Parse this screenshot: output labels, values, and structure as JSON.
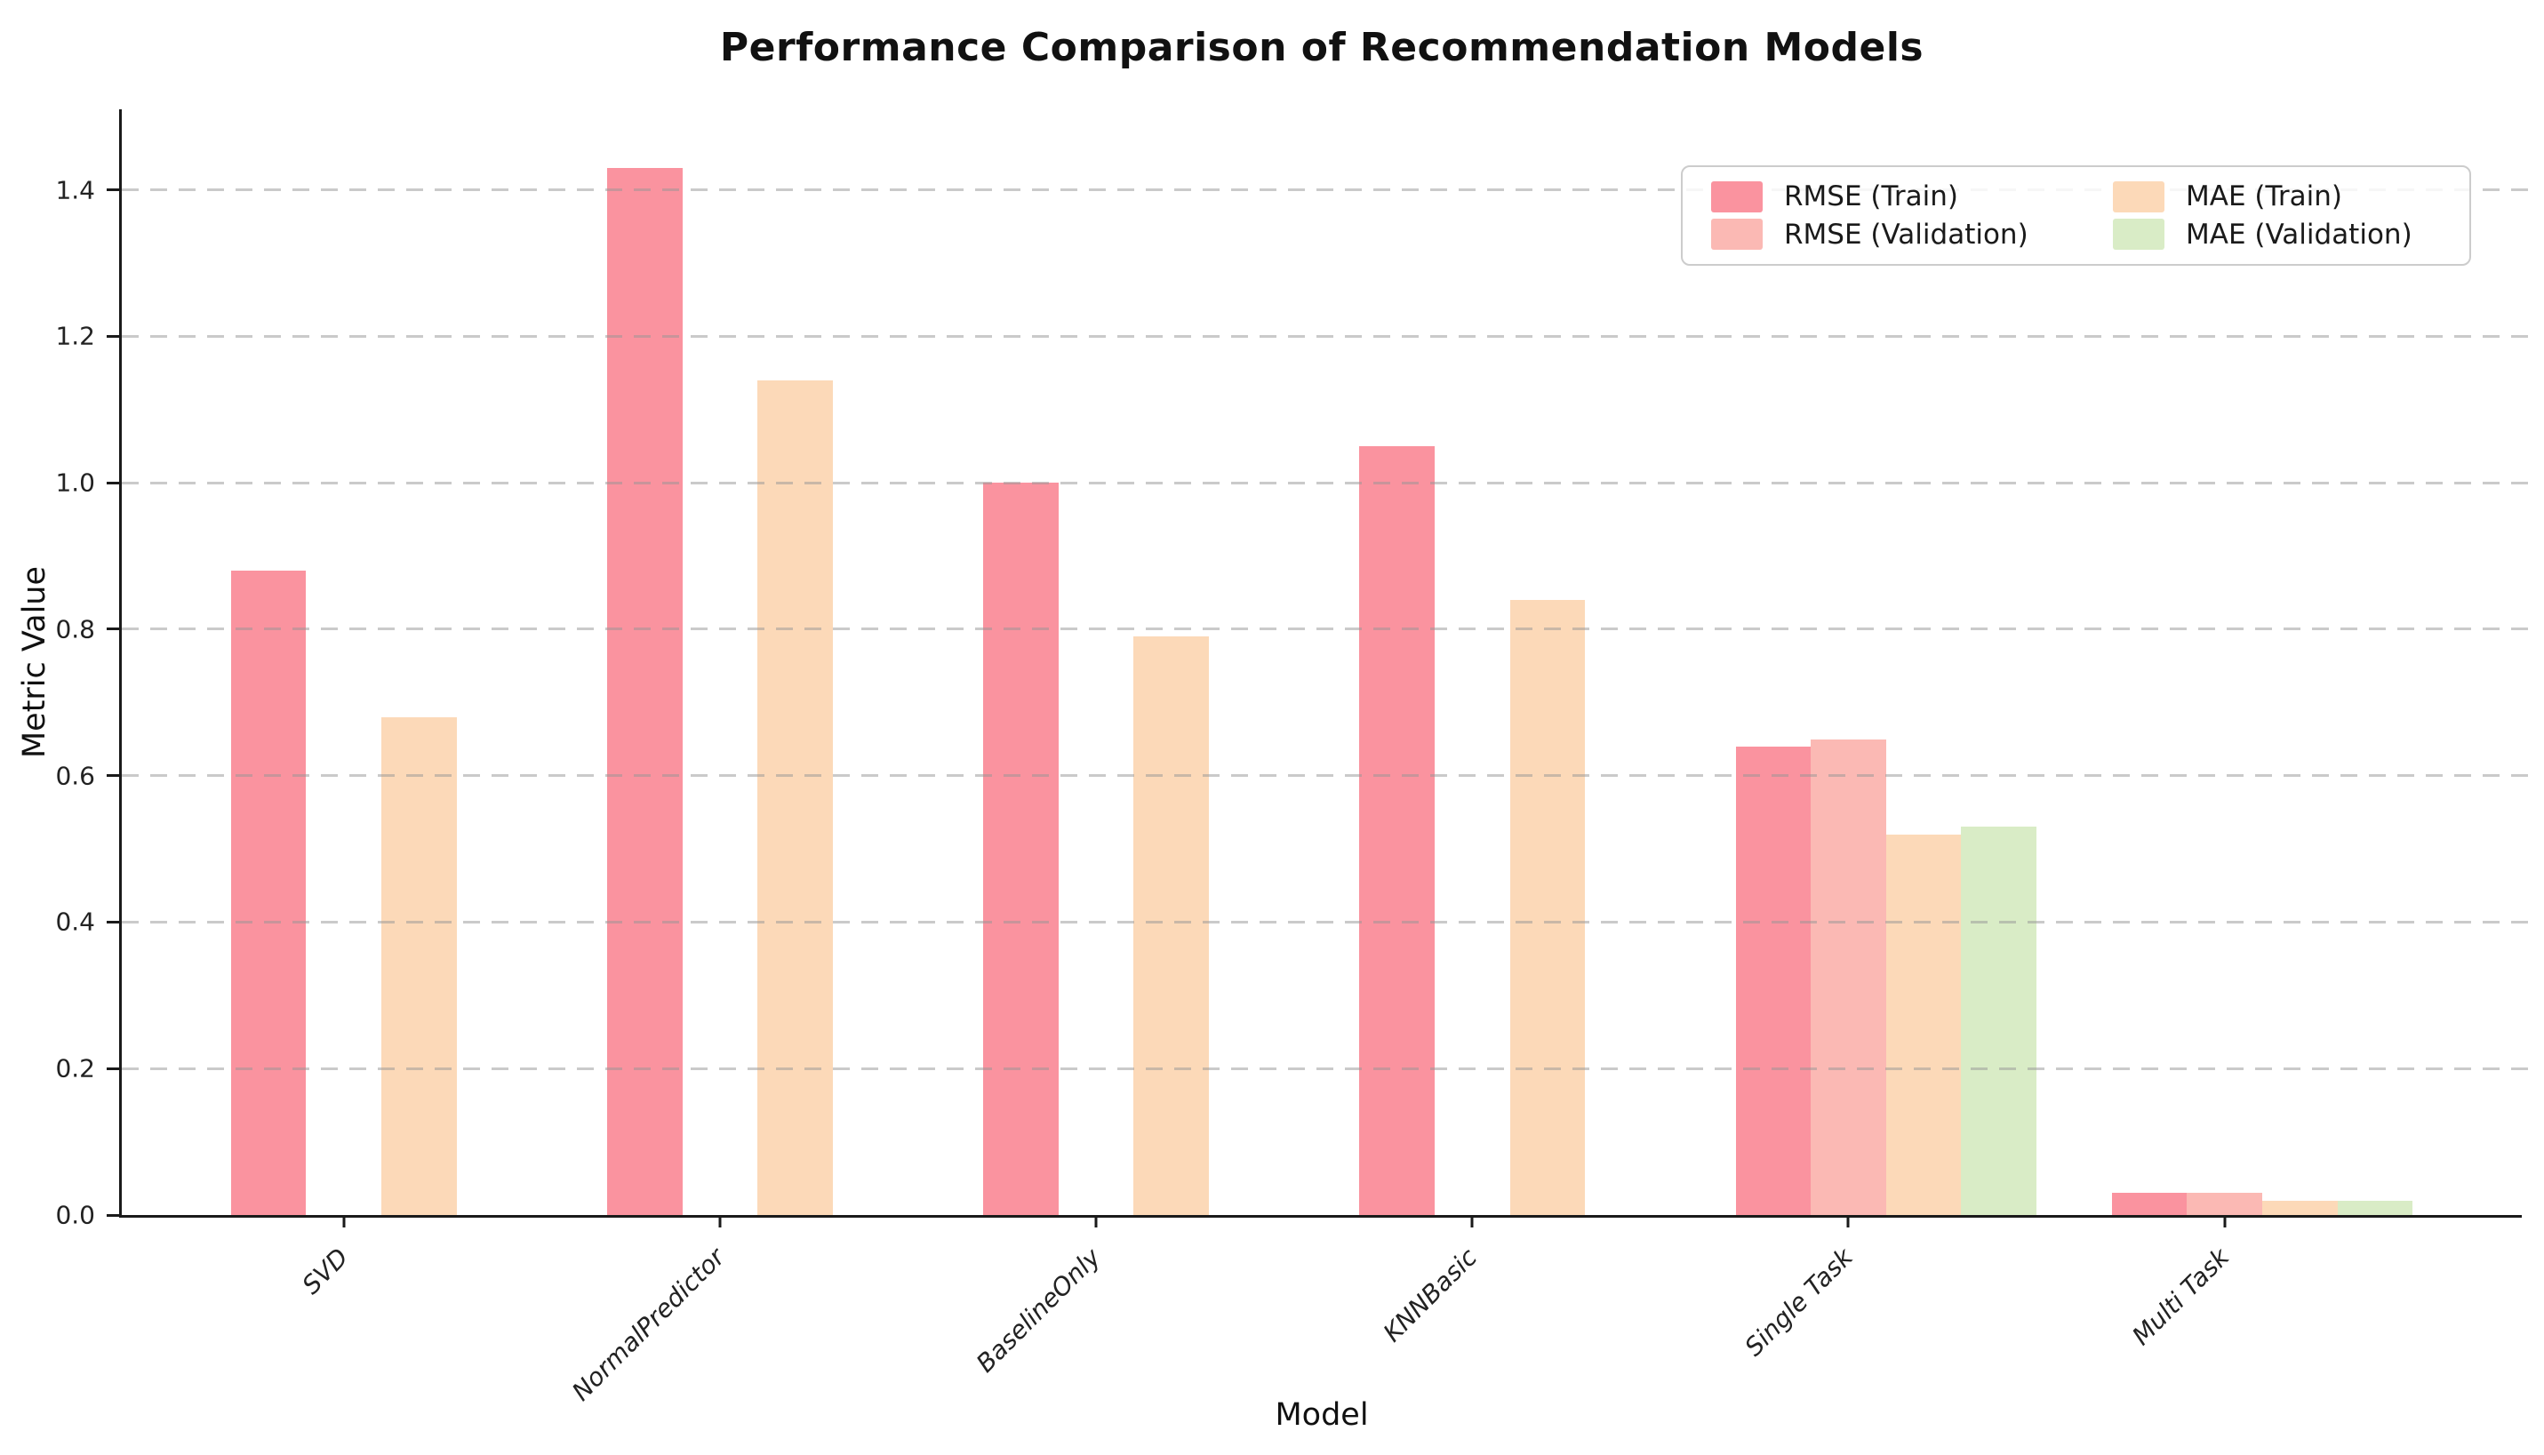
{
  "chart_data": {
    "type": "bar",
    "title": "Performance Comparison of Recommendation Models",
    "xlabel": "Model",
    "ylabel": "Metric Value",
    "categories": [
      "SVD",
      "NormalPredictor",
      "BaselineOnly",
      "KNNBasic",
      "Single Task",
      "Multi Task"
    ],
    "series": [
      {
        "name": "RMSE (Train)",
        "color": "#FA939F",
        "values": [
          0.88,
          1.43,
          1.0,
          1.05,
          0.64,
          0.03
        ]
      },
      {
        "name": "RMSE (Validation)",
        "color": "#FBB9B4",
        "values": [
          0,
          0,
          0,
          0,
          0.65,
          0.03
        ]
      },
      {
        "name": "MAE (Train)",
        "color": "#FCD9B8",
        "values": [
          0.68,
          1.14,
          0.79,
          0.84,
          0.52,
          0.02
        ]
      },
      {
        "name": "MAE (Validation)",
        "color": "#D9ECC6",
        "values": [
          0,
          0,
          0,
          0,
          0.53,
          0.02
        ]
      }
    ],
    "yticks": [
      0.0,
      0.2,
      0.4,
      0.6,
      0.8,
      1.0,
      1.2,
      1.4
    ],
    "ylim": [
      0,
      1.51
    ],
    "xlim": [
      -0.59,
      5.79
    ],
    "bar_width": 0.2,
    "bar_offsets": [
      -0.2,
      0.0,
      0.2,
      0.4
    ],
    "grid": "horizontal-dashed",
    "legend_position": "upper right",
    "legend_columns": 2
  }
}
